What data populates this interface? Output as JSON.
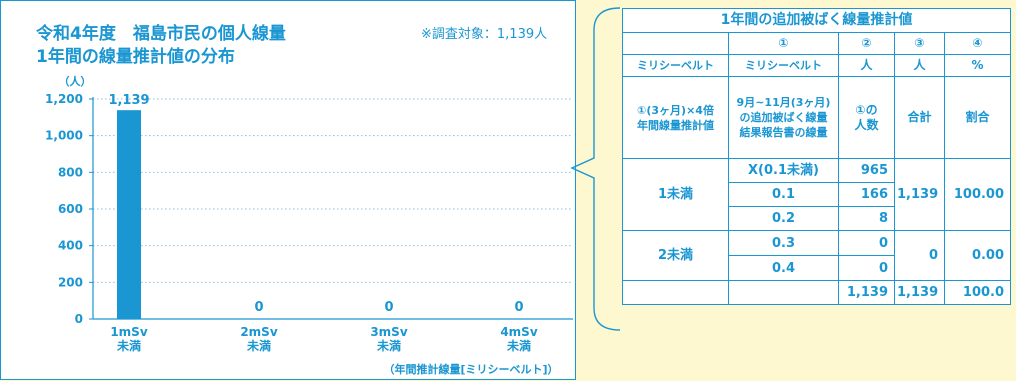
{
  "chart": {
    "title_line1": "令和4年度　福島市民の個人線量",
    "title_line2": "1年間の線量推計値の分布",
    "survey_note": "※調査対象：1,139人",
    "footer_note": "（年間推計線量[ミリシーベルト]）"
  },
  "chart_data": {
    "type": "bar",
    "title": "令和4年度　福島市民の個人線量 1年間の線量推計値の分布",
    "ylabel": "（人）",
    "xlabel": "（年間推計線量[ミリシーベルト]）",
    "categories": [
      {
        "line1": "1mSv",
        "line2": "未満"
      },
      {
        "line1": "2mSv",
        "line2": "未満"
      },
      {
        "line1": "3mSv",
        "line2": "未満"
      },
      {
        "line1": "4mSv",
        "line2": "未満"
      }
    ],
    "values": [
      1139,
      0,
      0,
      0
    ],
    "value_labels": [
      "1,139",
      "0",
      "0",
      "0"
    ],
    "yticks": [
      0,
      200,
      400,
      600,
      800,
      1000,
      1200
    ],
    "ytick_labels": [
      "0",
      "200",
      "400",
      "600",
      "800",
      "1,000",
      "1,200"
    ],
    "ylim": [
      0,
      1200
    ],
    "grid": true,
    "colors": {
      "bar": "#1a96d2",
      "grid": "#7fc3e6",
      "text": "#1a96d2"
    }
  },
  "table": {
    "title": "1年間の追加被ばく線量推計値",
    "col_numbers": [
      "①",
      "②",
      "③",
      "④"
    ],
    "units": [
      "ミリシーベルト",
      "ミリシーベルト",
      "人",
      "人",
      "%"
    ],
    "headers": {
      "c0": [
        "①(3ヶ月)×4倍",
        "年間線量推計値"
      ],
      "c1": [
        "9月~11月(3ヶ月)",
        "の追加被ばく線量",
        "結果報告書の線量"
      ],
      "c2": [
        "①の",
        "人数"
      ],
      "c3": "合計",
      "c4": "割合"
    },
    "group1": {
      "label": "1未満",
      "total": "1,139",
      "ratio": "100.00",
      "rows": [
        {
          "dose": "X(0.1未満)",
          "count": "965"
        },
        {
          "dose": "0.1",
          "count": "166"
        },
        {
          "dose": "0.2",
          "count": "8"
        }
      ]
    },
    "group2": {
      "label": "2未満",
      "total": "0",
      "ratio": "0.00",
      "rows": [
        {
          "dose": "0.3",
          "count": "0"
        },
        {
          "dose": "0.4",
          "count": "0"
        }
      ]
    },
    "totals": {
      "count": "1,139",
      "total": "1,139",
      "ratio": "100.0"
    }
  },
  "colors": {
    "accent": "#1a96d2",
    "background": "#fdf8d0",
    "panel": "#ffffff"
  }
}
